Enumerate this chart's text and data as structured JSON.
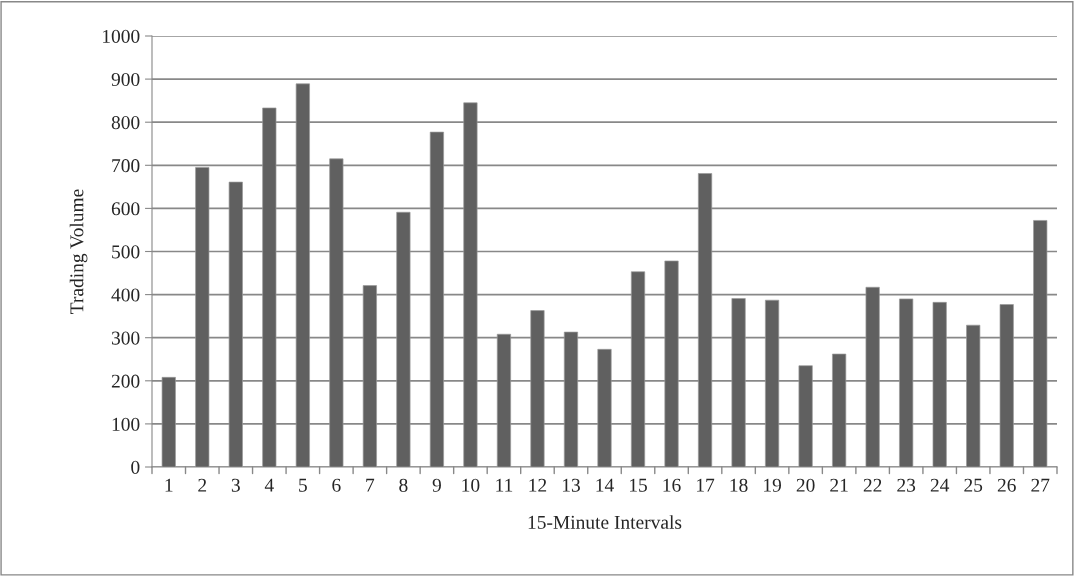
{
  "chart_data": {
    "type": "bar",
    "xlabel": "15-Minute Intervals",
    "ylabel": "Trading Volume",
    "categories": [
      "1",
      "2",
      "3",
      "4",
      "5",
      "6",
      "7",
      "8",
      "9",
      "10",
      "11",
      "12",
      "13",
      "14",
      "15",
      "16",
      "17",
      "18",
      "19",
      "20",
      "21",
      "22",
      "23",
      "24",
      "25",
      "26",
      "27"
    ],
    "values": [
      208,
      695,
      661,
      833,
      889,
      715,
      421,
      591,
      777,
      845,
      308,
      363,
      313,
      273,
      453,
      478,
      681,
      391,
      387,
      235,
      262,
      417,
      390,
      382,
      329,
      377,
      572
    ],
    "color": "#606060",
    "ylim": [
      0,
      1000
    ],
    "yticks": [
      0,
      100,
      200,
      300,
      400,
      500,
      600,
      700,
      800,
      900,
      1000
    ],
    "grid": "y",
    "legend": false
  }
}
